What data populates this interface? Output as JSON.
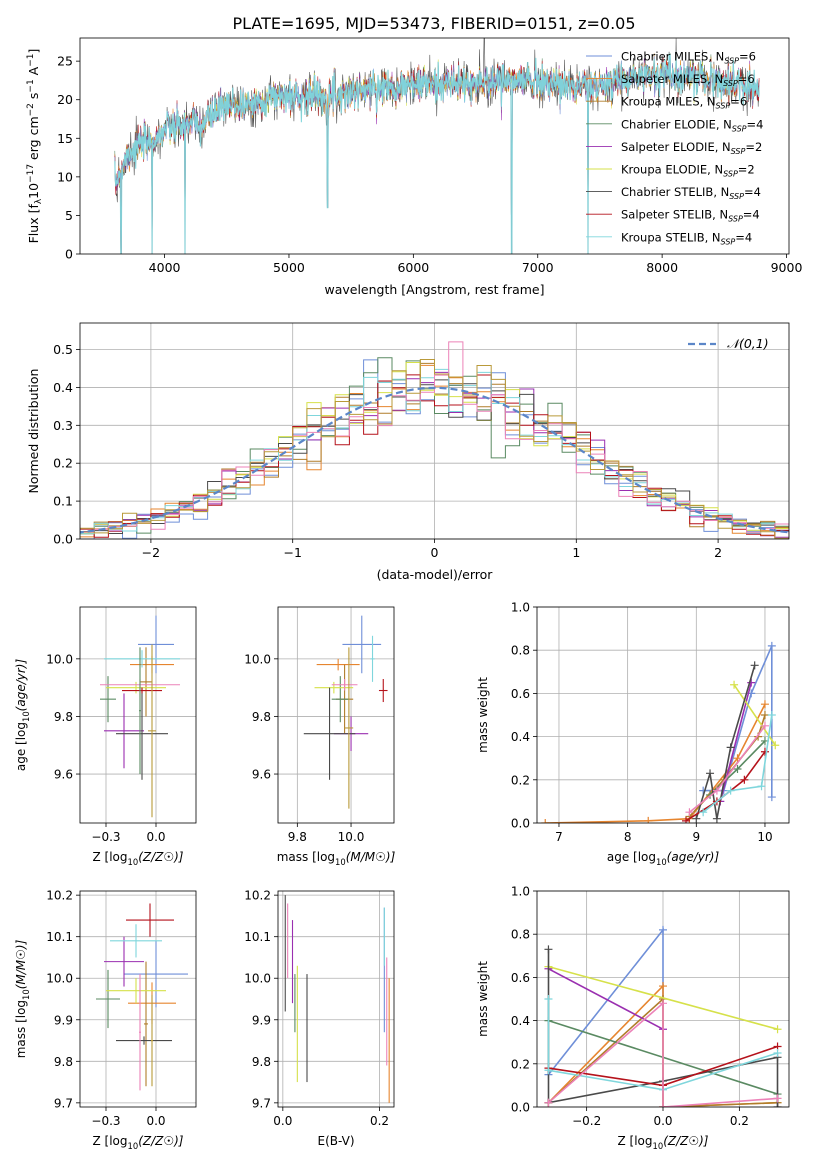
{
  "title": "PLATE=1695, MJD=53473, FIBERID=0151, z=0.05",
  "palette": [
    "#6f8fd8",
    "#e6852f",
    "#b07d2a",
    "#5a8a62",
    "#9a2fb0",
    "#d6e14a",
    "#4a4a4a",
    "#b5121b",
    "#7fd6dc",
    "#ec82b8",
    "#b99a3a"
  ],
  "chart_data": [
    {
      "id": "spectrum",
      "type": "line",
      "xlabel": "wavelength [Angstrom, rest frame]",
      "ylabel": "Flux [f_λ 10^-17 erg cm^-2 s^-1 A^-1]",
      "xlim": [
        3320,
        9020
      ],
      "ylim": [
        0,
        28
      ],
      "xticks": [
        4000,
        5000,
        6000,
        7000,
        8000,
        9000
      ],
      "yticks": [
        0,
        5,
        10,
        15,
        20,
        25
      ],
      "legend": "top-right",
      "series": [
        {
          "name": "Chabrier MILES, N_SSP=6",
          "label": "Chabrier MILES, N",
          "sub": "SSP",
          "nval": "=6"
        },
        {
          "name": "Salpeter MILES, N_SSP=6",
          "label": "Salpeter MILES, N",
          "sub": "SSP",
          "nval": "=6"
        },
        {
          "name": "Kroupa MILES, N_SSP=6",
          "label": "Kroupa MILES, N",
          "sub": "SSP",
          "nval": "=6"
        },
        {
          "name": "Chabrier ELODIE, N_SSP=4",
          "label": "Chabrier ELODIE, N",
          "sub": "SSP",
          "nval": "=4"
        },
        {
          "name": "Salpeter ELODIE, N_SSP=2",
          "label": "Salpeter ELODIE, N",
          "sub": "SSP",
          "nval": "=2"
        },
        {
          "name": "Kroupa ELODIE, N_SSP=2",
          "label": "Kroupa ELODIE, N",
          "sub": "SSP",
          "nval": "=2"
        },
        {
          "name": "Chabrier STELIB, N_SSP=4",
          "label": "Chabrier STELIB, N",
          "sub": "SSP",
          "nval": "=4"
        },
        {
          "name": "Salpeter STELIB, N_SSP=4",
          "label": "Salpeter STELIB, N",
          "sub": "SSP",
          "nval": "=4"
        },
        {
          "name": "Kroupa STELIB, N_SSP=4",
          "label": "Kroupa STELIB, N",
          "sub": "SSP",
          "nval": "=4"
        }
      ],
      "x_range": [
        3600,
        8780
      ],
      "continuum": [
        [
          3600,
          9
        ],
        [
          3700,
          13
        ],
        [
          3800,
          14
        ],
        [
          3900,
          14.5
        ],
        [
          4000,
          16
        ],
        [
          4100,
          16.5
        ],
        [
          4200,
          17
        ],
        [
          4300,
          16.5
        ],
        [
          4400,
          18.5
        ],
        [
          4500,
          19
        ],
        [
          4700,
          19.5
        ],
        [
          4900,
          20.5
        ],
        [
          5100,
          20.5
        ],
        [
          5300,
          20.5
        ],
        [
          5500,
          21
        ],
        [
          5700,
          21.5
        ],
        [
          6000,
          22
        ],
        [
          6300,
          22
        ],
        [
          6500,
          22
        ],
        [
          6700,
          22.5
        ],
        [
          7000,
          22.5
        ],
        [
          7200,
          22
        ],
        [
          7400,
          21.5
        ],
        [
          7600,
          22
        ],
        [
          7800,
          23
        ],
        [
          8000,
          23.5
        ],
        [
          8200,
          23
        ],
        [
          8400,
          22.5
        ],
        [
          8600,
          22
        ],
        [
          8780,
          21.5
        ]
      ],
      "drops": [
        [
          3650,
          0
        ],
        [
          3900,
          0
        ],
        [
          4165,
          0
        ],
        [
          5310,
          6
        ],
        [
          6790,
          0
        ],
        [
          7405,
          0
        ]
      ],
      "spike": [
        6570,
        28
      ]
    },
    {
      "id": "residuals",
      "type": "histogram",
      "xlabel": "(data-model)/error",
      "ylabel": "Normed distribution",
      "xlim": [
        -2.5,
        2.5
      ],
      "ylim": [
        0,
        0.57
      ],
      "xticks": [
        -2,
        -1,
        0,
        1,
        2
      ],
      "yticks": [
        0,
        0.1,
        0.2,
        0.3,
        0.4,
        0.5
      ],
      "bin_width": 0.1,
      "n_hist": 11,
      "legend": "top-right",
      "curve_name": "𝒩(0,1)",
      "curve_color": "#5b86c8"
    },
    {
      "id": "z-age",
      "type": "errorbar",
      "xlabel_main": "Z [log",
      "xlabel_sub": "10",
      "xlabel_tail": "(Z/Z☉)]",
      "ylabel_main": "age  [log",
      "ylabel_sub": "10",
      "ylabel_tail": "(age/yr)]",
      "xlim": [
        -0.38,
        0.2
      ],
      "ylim": [
        9.43,
        10.18
      ],
      "xticks": [
        -0.25,
        0.0
      ],
      "yticks": [
        9.6,
        9.8,
        10.0
      ],
      "points": [
        {
          "c": 0,
          "x": 0.0,
          "y": 10.05,
          "xe": 0.09,
          "ye": 0.1
        },
        {
          "c": 1,
          "x": -0.02,
          "y": 9.98,
          "xe": 0.11,
          "ye": 0.03
        },
        {
          "c": 2,
          "x": -0.05,
          "y": 9.92,
          "xe": 0.03,
          "ye": 0.12
        },
        {
          "c": 3,
          "x": -0.24,
          "y": 9.86,
          "xe": 0.04,
          "ye": 0.08
        },
        {
          "c": 4,
          "x": -0.16,
          "y": 9.75,
          "xe": 0.1,
          "ye": 0.13
        },
        {
          "c": 5,
          "x": -0.1,
          "y": 9.9,
          "xe": 0.15,
          "ye": 0.02
        },
        {
          "c": 6,
          "x": -0.07,
          "y": 9.74,
          "xe": 0.13,
          "ye": 0.16
        },
        {
          "c": 7,
          "x": -0.07,
          "y": 9.89,
          "xe": 0.1,
          "ye": 0.01
        },
        {
          "c": 8,
          "x": -0.07,
          "y": 10.0,
          "xe": 0.19,
          "ye": 0.03
        },
        {
          "c": 9,
          "x": -0.08,
          "y": 9.91,
          "xe": 0.2,
          "ye": 0.02
        },
        {
          "c": 10,
          "x": -0.02,
          "y": 9.75,
          "xe": 0.02,
          "ye": 0.3
        },
        {
          "c": 3,
          "x": -0.08,
          "y": 9.82,
          "xe": 0.005,
          "ye": 0.22
        }
      ]
    },
    {
      "id": "mass-age",
      "type": "errorbar",
      "xlabel_main": "mass [log",
      "xlabel_sub": "10",
      "xlabel_tail": "(M/M☉)]",
      "ylabel_main": "",
      "ylabel_sub": "",
      "ylabel_tail": "",
      "xlim": [
        9.66,
        10.2
      ],
      "ylim": [
        9.43,
        10.18
      ],
      "xticks": [
        9.75,
        10.0
      ],
      "yticks": [
        9.6,
        9.8,
        10.0
      ],
      "points": [
        {
          "c": 0,
          "x": 10.05,
          "y": 10.05,
          "xe": 0.09,
          "ye": 0.1
        },
        {
          "c": 1,
          "x": 9.94,
          "y": 9.98,
          "xe": 0.1,
          "ye": 0.02
        },
        {
          "c": 2,
          "x": 9.97,
          "y": 9.86,
          "xe": 0.04,
          "ye": 0.12
        },
        {
          "c": 3,
          "x": 9.95,
          "y": 9.86,
          "xe": 0.04,
          "ye": 0.08
        },
        {
          "c": 4,
          "x": 10.0,
          "y": 9.74,
          "xe": 0.08,
          "ye": 0.06
        },
        {
          "c": 5,
          "x": 9.92,
          "y": 9.9,
          "xe": 0.09,
          "ye": 0.02
        },
        {
          "c": 6,
          "x": 9.9,
          "y": 9.74,
          "xe": 0.12,
          "ye": 0.16
        },
        {
          "c": 7,
          "x": 10.15,
          "y": 9.89,
          "xe": 0.02,
          "ye": 0.04
        },
        {
          "c": 8,
          "x": 10.1,
          "y": 10.0,
          "xe": 0.01,
          "ye": 0.08
        },
        {
          "c": 9,
          "x": 9.97,
          "y": 9.91,
          "xe": 0.06,
          "ye": 0.02
        },
        {
          "c": 10,
          "x": 9.99,
          "y": 9.76,
          "xe": 0.02,
          "ye": 0.28
        }
      ]
    },
    {
      "id": "weight-age",
      "type": "line",
      "xlabel_main": "age  [log",
      "xlabel_sub": "10",
      "xlabel_tail": "(age/yr)]",
      "ylabel_main": "mass weight",
      "ylabel_sub": "",
      "ylabel_tail": "",
      "xlim": [
        6.68,
        10.35
      ],
      "ylim": [
        0,
        1
      ],
      "xticks": [
        7,
        8,
        9,
        10
      ],
      "yticks": [
        0,
        0.2,
        0.4,
        0.6,
        0.8,
        1.0
      ],
      "series": [
        {
          "c": 0,
          "pts": [
            [
              9.1,
              0.15
            ],
            [
              9.4,
              0.15
            ],
            [
              9.8,
              0.6
            ],
            [
              10.1,
              0.82
            ],
            [
              10.1,
              0.12
            ]
          ]
        },
        {
          "c": 1,
          "pts": [
            [
              6.8,
              0.0
            ],
            [
              8.3,
              0.01
            ],
            [
              8.9,
              0.02
            ],
            [
              9.6,
              0.3
            ],
            [
              10.0,
              0.55
            ]
          ]
        },
        {
          "c": 2,
          "pts": [
            [
              8.9,
              0.03
            ],
            [
              9.4,
              0.2
            ],
            [
              9.9,
              0.4
            ],
            [
              10.0,
              0.5
            ]
          ]
        },
        {
          "c": 3,
          "pts": [
            [
              9.2,
              0.13
            ],
            [
              9.6,
              0.25
            ],
            [
              10.0,
              0.38
            ]
          ]
        },
        {
          "c": 4,
          "pts": [
            [
              9.35,
              0.1
            ],
            [
              9.8,
              0.65
            ]
          ]
        },
        {
          "c": 5,
          "pts": [
            [
              9.55,
              0.64
            ],
            [
              10.15,
              0.36
            ]
          ]
        },
        {
          "c": 6,
          "pts": [
            [
              9.0,
              0.02
            ],
            [
              9.2,
              0.23
            ],
            [
              9.3,
              0.02
            ],
            [
              9.5,
              0.35
            ],
            [
              9.85,
              0.73
            ]
          ]
        },
        {
          "c": 7,
          "pts": [
            [
              8.85,
              0.01
            ],
            [
              9.3,
              0.1
            ],
            [
              9.7,
              0.2
            ],
            [
              10.0,
              0.33
            ]
          ]
        },
        {
          "c": 8,
          "pts": [
            [
              9.1,
              0.05
            ],
            [
              9.5,
              0.15
            ],
            [
              9.95,
              0.17
            ],
            [
              10.1,
              0.5
            ]
          ]
        },
        {
          "c": 9,
          "pts": [
            [
              8.9,
              0.05
            ],
            [
              9.3,
              0.15
            ],
            [
              10.0,
              0.45
            ]
          ]
        }
      ]
    },
    {
      "id": "z-mass",
      "type": "errorbar",
      "xlabel_main": "Z [log",
      "xlabel_sub": "10",
      "xlabel_tail": "(Z/Z☉)]",
      "ylabel_main": "mass [log",
      "ylabel_sub": "10",
      "ylabel_tail": "(M/M☉)]",
      "xlim": [
        -0.38,
        0.2
      ],
      "ylim": [
        9.69,
        10.21
      ],
      "xticks": [
        -0.25,
        0.0
      ],
      "yticks": [
        9.7,
        9.8,
        9.9,
        10.0,
        10.1,
        10.2
      ],
      "points": [
        {
          "c": 0,
          "x": 0.0,
          "y": 10.01,
          "xe": 0.16,
          "ye": 0.08
        },
        {
          "c": 1,
          "x": -0.02,
          "y": 9.94,
          "xe": 0.12,
          "ye": 0.05
        },
        {
          "c": 2,
          "x": -0.05,
          "y": 9.89,
          "xe": 0.01,
          "ye": 0.15
        },
        {
          "c": 3,
          "x": -0.24,
          "y": 9.95,
          "xe": 0.06,
          "ye": 0.07
        },
        {
          "c": 4,
          "x": -0.16,
          "y": 10.04,
          "xe": 0.1,
          "ye": 0.06
        },
        {
          "c": 5,
          "x": -0.1,
          "y": 9.97,
          "xe": 0.15,
          "ye": 0.03
        },
        {
          "c": 6,
          "x": -0.06,
          "y": 9.85,
          "xe": 0.14,
          "ye": 0.01
        },
        {
          "c": 7,
          "x": -0.03,
          "y": 10.14,
          "xe": 0.12,
          "ye": 0.04
        },
        {
          "c": 8,
          "x": -0.1,
          "y": 10.09,
          "xe": 0.13,
          "ye": 0.04
        },
        {
          "c": 10,
          "x": -0.02,
          "y": 9.85,
          "xe": 0.005,
          "ye": 0.11
        },
        {
          "c": 9,
          "x": -0.08,
          "y": 9.87,
          "xe": 0.005,
          "ye": 0.14
        }
      ]
    },
    {
      "id": "ebv-mass",
      "type": "errorbar",
      "xlabel_main": "E(B-V)",
      "xlabel_sub": "",
      "xlabel_tail": "",
      "ylabel_main": "",
      "ylabel_sub": "",
      "ylabel_tail": "",
      "xlim": [
        -0.01,
        0.23
      ],
      "ylim": [
        9.69,
        10.21
      ],
      "xticks": [
        0.0,
        0.2
      ],
      "yticks": [
        9.7,
        9.8,
        9.9,
        10.0,
        10.1,
        10.2
      ],
      "points": [
        {
          "c": 6,
          "x": 0.005,
          "y": 10.06,
          "xe": 0,
          "ye": 0.14
        },
        {
          "c": 9,
          "x": 0.01,
          "y": 10.09,
          "xe": 0,
          "ye": 0.09
        },
        {
          "c": 4,
          "x": 0.02,
          "y": 10.04,
          "xe": 0,
          "ye": 0.1
        },
        {
          "c": 3,
          "x": 0.025,
          "y": 9.94,
          "xe": 0,
          "ye": 0.07
        },
        {
          "c": 5,
          "x": 0.03,
          "y": 9.89,
          "xe": 0,
          "ye": 0.14
        },
        {
          "c": 6,
          "x": 0.05,
          "y": 9.88,
          "xe": 0,
          "ye": 0.13
        },
        {
          "c": 0,
          "x": 0.21,
          "y": 10.02,
          "xe": 0,
          "ye": 0.15
        },
        {
          "c": 9,
          "x": 0.215,
          "y": 9.92,
          "xe": 0,
          "ye": 0.13
        },
        {
          "c": 1,
          "x": 0.22,
          "y": 9.85,
          "xe": 0,
          "ye": 0.15
        },
        {
          "c": 8,
          "x": 0.21,
          "y": 10.1,
          "xe": 0,
          "ye": 0.07
        }
      ]
    },
    {
      "id": "weight-z",
      "type": "line",
      "xlabel_main": "Z [log",
      "xlabel_sub": "10",
      "xlabel_tail": "(Z/Z☉)]",
      "ylabel_main": "mass weight",
      "ylabel_sub": "",
      "ylabel_tail": "",
      "xlim": [
        -0.33,
        0.33
      ],
      "ylim": [
        0,
        1
      ],
      "xticks": [
        -0.2,
        0.0,
        0.2
      ],
      "yticks": [
        0,
        0.2,
        0.4,
        0.6,
        0.8,
        1.0
      ],
      "series": [
        {
          "c": 0,
          "pts": [
            [
              -0.3,
              0.15
            ],
            [
              0.0,
              0.82
            ],
            [
              0.0,
              0.0
            ]
          ]
        },
        {
          "c": 1,
          "pts": [
            [
              -0.3,
              0.02
            ],
            [
              0.0,
              0.56
            ],
            [
              0.0,
              0.0
            ],
            [
              0.3,
              0.02
            ]
          ]
        },
        {
          "c": 2,
          "pts": [
            [
              -0.3,
              0.02
            ],
            [
              0.0,
              0.5
            ],
            [
              0.0,
              0.0
            ],
            [
              0.3,
              0.02
            ]
          ]
        },
        {
          "c": 3,
          "pts": [
            [
              -0.3,
              0.4
            ],
            [
              0.3,
              0.06
            ]
          ]
        },
        {
          "c": 4,
          "pts": [
            [
              -0.3,
              0.64
            ],
            [
              0.0,
              0.36
            ]
          ]
        },
        {
          "c": 5,
          "pts": [
            [
              -0.3,
              0.65
            ],
            [
              0.3,
              0.36
            ]
          ]
        },
        {
          "c": 6,
          "pts": [
            [
              -0.3,
              0.73
            ],
            [
              -0.3,
              0.02
            ],
            [
              0.0,
              0.12
            ],
            [
              0.3,
              0.23
            ],
            [
              0.3,
              0.0
            ]
          ]
        },
        {
          "c": 7,
          "pts": [
            [
              -0.3,
              0.18
            ],
            [
              0.0,
              0.1
            ],
            [
              0.3,
              0.28
            ]
          ]
        },
        {
          "c": 8,
          "pts": [
            [
              -0.3,
              0.5
            ],
            [
              -0.3,
              0.17
            ],
            [
              0.0,
              0.08
            ],
            [
              0.3,
              0.25
            ]
          ]
        },
        {
          "c": 9,
          "pts": [
            [
              -0.3,
              0.02
            ],
            [
              0.0,
              0.48
            ],
            [
              0.0,
              0.0
            ],
            [
              0.3,
              0.04
            ]
          ]
        }
      ]
    }
  ]
}
